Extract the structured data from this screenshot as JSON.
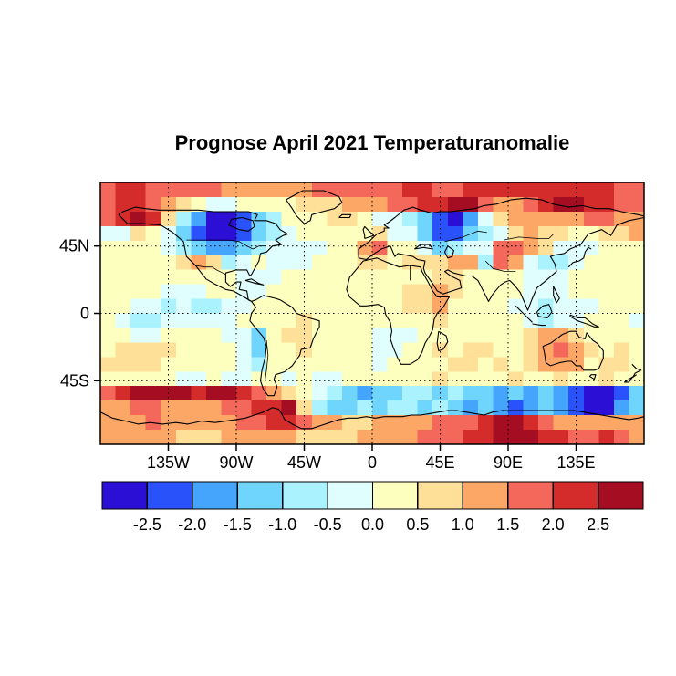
{
  "title": "Prognose April 2021 Temperaturanomalie",
  "axes": {
    "x_ticks": [
      {
        "label": "135W",
        "lon": -135
      },
      {
        "label": "90W",
        "lon": -90
      },
      {
        "label": "45W",
        "lon": -45
      },
      {
        "label": "0",
        "lon": 0
      },
      {
        "label": "45E",
        "lon": 45
      },
      {
        "label": "90E",
        "lon": 90
      },
      {
        "label": "135E",
        "lon": 135
      }
    ],
    "y_ticks": [
      {
        "label": "45N",
        "lat": 45
      },
      {
        "label": "0",
        "lat": 0
      },
      {
        "label": "45S",
        "lat": -45
      }
    ]
  },
  "colorbar": {
    "tick_labels": [
      "-2.5",
      "-2.0",
      "-1.5",
      "-1.0",
      "-0.5",
      "0.0",
      "0.5",
      "1.0",
      "1.5",
      "2.0",
      "2.5"
    ],
    "cell_colors": [
      "#2c0fd4",
      "#2a52fb",
      "#45a4fc",
      "#70d5fc",
      "#aaf2fd",
      "#e0fefd",
      "#fdffbe",
      "#fee098",
      "#fda766",
      "#f4685c",
      "#d42b2b",
      "#a50d23"
    ],
    "border_color": "#000000"
  },
  "chart_data": {
    "type": "heatmap",
    "title": "Prognose April 2021 Temperaturanomalie",
    "projection": "equirectangular",
    "lon_range": [
      -180,
      180
    ],
    "lat_range": [
      -87.5,
      87.5
    ],
    "x_tick_lons": [
      -135,
      -90,
      -45,
      0,
      45,
      90,
      135
    ],
    "y_tick_lats": [
      45,
      0,
      -45
    ],
    "levels": [
      -3,
      -2.5,
      -2,
      -1.5,
      -1,
      -0.5,
      0,
      0.5,
      1,
      1.5,
      2,
      2.5,
      3
    ],
    "palette": [
      "#2c0fd4",
      "#2a52fb",
      "#45a4fc",
      "#70d5fc",
      "#aaf2fd",
      "#e0fefd",
      "#fdffbe",
      "#fee098",
      "#fda766",
      "#f4685c",
      "#d42b2b",
      "#a50d23"
    ],
    "grid_rows_lat_north_to_south": 18,
    "grid_cols_lon_west_to_east": 36,
    "anomaly_c": [
      [
        1.8,
        2.2,
        2.2,
        1.8,
        1.8,
        1.8,
        1.8,
        1.6,
        1.3,
        1.3,
        1.3,
        1.3,
        1.3,
        1.3,
        1.6,
        1.8,
        1.8,
        1.8,
        1.8,
        1.8,
        2.2,
        2.2,
        1.8,
        1.8,
        2.2,
        2.2,
        2.2,
        2.2,
        2.2,
        2.2,
        2.2,
        2.2,
        2.2,
        2.2,
        1.8,
        1.8
      ],
      [
        1.8,
        2.2,
        2.2,
        1.8,
        1.3,
        0.7,
        0.3,
        -0.3,
        -0.3,
        0.3,
        0.3,
        0.3,
        0.3,
        0.9,
        0.7,
        0.7,
        1.3,
        1.3,
        1.3,
        1.8,
        1.8,
        2.2,
        2.2,
        2.6,
        2.6,
        1.8,
        1.3,
        1.3,
        1.8,
        2.2,
        2.6,
        2.6,
        2.2,
        2.2,
        1.8,
        1.8
      ],
      [
        1.8,
        2.2,
        2.6,
        2.2,
        0.7,
        -0.7,
        -1.8,
        -2.6,
        -2.6,
        -2.2,
        -1.3,
        -0.7,
        0.3,
        0.3,
        0.3,
        0.7,
        0.7,
        0.3,
        -0.3,
        -0.3,
        -0.7,
        -1.3,
        -2.2,
        -2.6,
        -1.8,
        -0.3,
        0.7,
        1.3,
        1.3,
        1.3,
        1.3,
        1.3,
        1.8,
        1.8,
        1.3,
        1.3
      ],
      [
        -0.3,
        -0.3,
        0.7,
        0.3,
        -0.3,
        -1.3,
        -2.2,
        -2.7,
        -2.7,
        -2.2,
        -1.3,
        -0.7,
        -0.3,
        0.3,
        0.3,
        0.3,
        0.3,
        0.3,
        0.7,
        -0.3,
        -0.3,
        -1.3,
        -2.2,
        -2.2,
        -1.3,
        -0.7,
        -0.3,
        0.7,
        1.3,
        0.7,
        0.7,
        0.3,
        0.3,
        0.7,
        0.7,
        1.3
      ],
      [
        0.3,
        0.3,
        0.3,
        0.3,
        -0.3,
        -0.7,
        -1.3,
        -1.8,
        -1.8,
        -1.3,
        -0.7,
        -0.3,
        -0.3,
        -0.3,
        -0.3,
        0.3,
        0.3,
        1.3,
        1.8,
        0.3,
        0.3,
        -0.3,
        -1.3,
        -0.7,
        -0.3,
        -0.3,
        1.8,
        1.8,
        1.3,
        0.7,
        -0.3,
        -0.3,
        -0.3,
        0.3,
        0.3,
        0.3
      ],
      [
        0.3,
        0.3,
        0.3,
        0.3,
        0.3,
        0.7,
        1.3,
        0.7,
        -0.7,
        -0.3,
        0.3,
        -0.3,
        -0.3,
        -0.3,
        0.3,
        0.3,
        0.3,
        0.7,
        0.7,
        0.3,
        0.7,
        0.7,
        0.7,
        1.3,
        1.3,
        -0.7,
        1.8,
        1.3,
        -0.3,
        -0.7,
        -0.7,
        -0.3,
        0.3,
        0.3,
        0.3,
        0.3
      ],
      [
        0.3,
        0.3,
        0.3,
        0.3,
        0.3,
        0.3,
        0.3,
        0.3,
        0.3,
        -0.3,
        -0.3,
        -0.3,
        0.3,
        0.3,
        0.3,
        0.3,
        0.3,
        0.3,
        0.3,
        0.3,
        0.3,
        0.3,
        0.7,
        0.7,
        0.3,
        0.3,
        0.3,
        0.3,
        -0.3,
        -0.3,
        -0.3,
        0.3,
        0.3,
        0.3,
        0.3,
        0.3
      ],
      [
        0.3,
        0.3,
        0.3,
        0.3,
        -0.3,
        -0.3,
        -0.3,
        0.3,
        0.3,
        -0.3,
        -0.3,
        0.3,
        0.3,
        0.3,
        0.3,
        0.3,
        0.3,
        0.3,
        0.3,
        0.3,
        0.7,
        0.7,
        1.3,
        0.7,
        0.3,
        0.3,
        0.3,
        0.3,
        -0.3,
        -0.3,
        -0.3,
        0.3,
        0.3,
        0.3,
        0.3,
        0.3
      ],
      [
        0.3,
        0.3,
        -0.3,
        -0.3,
        -0.7,
        -0.3,
        -0.7,
        -0.7,
        -0.3,
        -0.3,
        0.3,
        0.3,
        0.3,
        0.3,
        0.3,
        0.3,
        0.3,
        0.3,
        0.3,
        0.3,
        0.7,
        0.7,
        1.3,
        0.3,
        0.3,
        0.3,
        0.3,
        -0.3,
        -0.3,
        -0.7,
        -0.3,
        -0.3,
        -0.3,
        0.3,
        0.3,
        0.3
      ],
      [
        0.3,
        -0.3,
        -0.7,
        -0.7,
        -0.3,
        -0.3,
        -0.3,
        -0.3,
        -0.3,
        0.3,
        0.3,
        0.3,
        0.3,
        0.7,
        0.3,
        0.3,
        0.3,
        0.3,
        0.3,
        0.3,
        0.3,
        0.3,
        0.7,
        0.3,
        0.3,
        0.3,
        0.3,
        0.3,
        -0.3,
        -0.7,
        -0.3,
        -0.3,
        0.3,
        0.3,
        0.3,
        -0.3
      ],
      [
        0.3,
        0.3,
        -0.3,
        -0.3,
        0.3,
        0.3,
        0.3,
        0.3,
        -0.3,
        -0.3,
        -1.3,
        0.3,
        0.7,
        0.7,
        0.3,
        0.3,
        0.3,
        0.3,
        -0.3,
        -0.3,
        -0.3,
        0.3,
        0.3,
        0.3,
        0.3,
        0.3,
        0.3,
        0.3,
        0.7,
        1.3,
        1.3,
        0.7,
        0.3,
        0.3,
        0.3,
        0.3
      ],
      [
        0.3,
        0.7,
        0.7,
        0.7,
        0.7,
        0.3,
        0.3,
        0.3,
        0.3,
        -0.3,
        -1.3,
        0.3,
        0.3,
        0.7,
        0.3,
        0.3,
        0.3,
        0.3,
        -0.3,
        -0.3,
        0.3,
        0.3,
        0.7,
        0.3,
        0.7,
        0.7,
        0.3,
        0.3,
        0.7,
        1.3,
        1.8,
        1.3,
        0.7,
        0.3,
        0.7,
        0.3
      ],
      [
        0.7,
        0.7,
        0.7,
        0.7,
        0.3,
        0.3,
        0.3,
        0.3,
        0.3,
        -0.3,
        -0.7,
        0.3,
        0.3,
        0.3,
        0.3,
        0.3,
        0.3,
        0.3,
        -0.3,
        0.3,
        0.3,
        0.3,
        0.3,
        0.7,
        0.7,
        0.3,
        0.7,
        0.3,
        0.7,
        1.3,
        1.3,
        1.3,
        0.3,
        0.7,
        0.7,
        0.3
      ],
      [
        0.3,
        0.3,
        0.3,
        0.3,
        0.3,
        -0.3,
        -0.3,
        0.3,
        -0.3,
        -0.3,
        0.3,
        0.3,
        -0.3,
        0.3,
        -0.3,
        -0.3,
        0.3,
        0.3,
        0.3,
        0.3,
        0.3,
        0.3,
        0.7,
        0.3,
        0.3,
        0.3,
        0.3,
        0.7,
        0.3,
        0.3,
        0.7,
        0.3,
        0.3,
        0.7,
        0.3,
        0.3
      ],
      [
        1.8,
        2.2,
        2.6,
        2.8,
        2.8,
        2.6,
        2.2,
        2.6,
        2.8,
        2.2,
        1.8,
        1.3,
        0.7,
        0.3,
        -0.3,
        -0.7,
        -1.3,
        -1.8,
        -1.3,
        -1.3,
        -0.7,
        -0.7,
        -1.3,
        -0.7,
        -1.3,
        -1.3,
        -1.8,
        -1.3,
        -1.8,
        -1.3,
        -1.8,
        -2.2,
        -2.6,
        -2.7,
        -2.2,
        -1.3
      ],
      [
        1.3,
        1.3,
        1.8,
        1.8,
        1.3,
        1.3,
        1.3,
        1.3,
        1.8,
        1.8,
        2.2,
        2.2,
        2.6,
        0.7,
        -0.7,
        -1.3,
        -1.3,
        -0.7,
        -1.3,
        -0.7,
        -0.7,
        -1.3,
        -0.7,
        -1.3,
        -1.8,
        -1.3,
        -1.8,
        -2.2,
        -1.8,
        -1.3,
        -1.8,
        -2.2,
        -2.6,
        -2.6,
        -1.8,
        -1.3
      ],
      [
        1.3,
        1.3,
        1.3,
        1.8,
        1.3,
        1.3,
        1.3,
        1.3,
        1.3,
        1.8,
        1.8,
        2.2,
        2.2,
        1.8,
        1.3,
        1.3,
        0.7,
        0.7,
        1.3,
        1.3,
        1.3,
        1.3,
        1.8,
        1.8,
        1.8,
        2.2,
        2.8,
        2.8,
        2.2,
        1.8,
        1.3,
        1.3,
        1.3,
        1.3,
        1.3,
        1.3
      ],
      [
        1.3,
        1.3,
        1.3,
        1.3,
        1.3,
        0.7,
        0.7,
        0.7,
        1.3,
        1.3,
        1.3,
        1.3,
        1.3,
        0.7,
        0.7,
        0.7,
        0.7,
        1.3,
        1.3,
        1.3,
        1.3,
        1.8,
        1.8,
        1.8,
        2.2,
        2.2,
        2.6,
        2.6,
        2.6,
        2.2,
        2.2,
        1.8,
        1.8,
        2.2,
        1.8,
        1.3
      ]
    ]
  }
}
